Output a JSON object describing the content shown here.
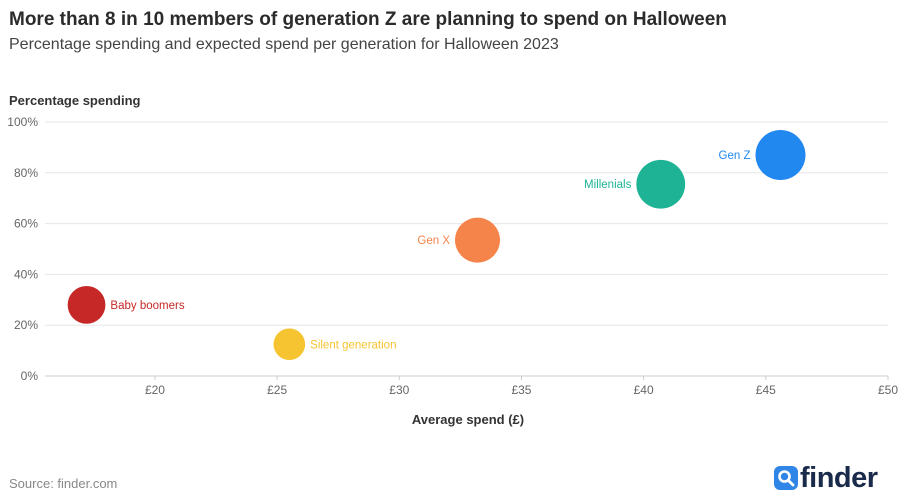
{
  "title": "More than 8 in 10 members of generation Z are planning to spend on Halloween",
  "subtitle": "Percentage spending and expected spend per generation for Halloween 2023",
  "source": "Source: finder.com",
  "brand": {
    "name": "finder",
    "icon": "finder-search-logo-icon",
    "color": "#1a2a4a",
    "accent": "#2f86e6"
  },
  "chart_data": {
    "type": "scatter",
    "title": "More than 8 in 10 members of generation Z are planning to spend on Halloween",
    "xlabel": "Average spend (£)",
    "ylabel": "Percentage spending",
    "xlim": [
      15.5,
      50
    ],
    "ylim": [
      0,
      100
    ],
    "x_ticks": [
      20,
      25,
      30,
      35,
      40,
      45,
      50
    ],
    "x_tick_labels": [
      "£20",
      "£25",
      "£30",
      "£35",
      "£40",
      "£45",
      "£50"
    ],
    "y_ticks": [
      0,
      20,
      40,
      60,
      80,
      100
    ],
    "y_tick_labels": [
      "0%",
      "20%",
      "40%",
      "60%",
      "80%",
      "100%"
    ],
    "grid": true,
    "points": [
      {
        "name": "Baby boomers",
        "x": 17.2,
        "y": 28,
        "size": 0.6,
        "color": "#c62828",
        "label_side": "right"
      },
      {
        "name": "Silent generation",
        "x": 25.5,
        "y": 12.5,
        "size": 0.42,
        "color": "#f5c430",
        "label_side": "right"
      },
      {
        "name": "Gen X",
        "x": 33.2,
        "y": 53.5,
        "size": 0.85,
        "color": "#f5844a",
        "label_side": "left"
      },
      {
        "name": "Millenials",
        "x": 40.7,
        "y": 75.5,
        "size": 1.0,
        "color": "#1db394",
        "label_side": "left"
      },
      {
        "name": "Gen Z",
        "x": 45.6,
        "y": 87,
        "size": 1.05,
        "color": "#2188f0",
        "label_side": "left"
      }
    ]
  }
}
